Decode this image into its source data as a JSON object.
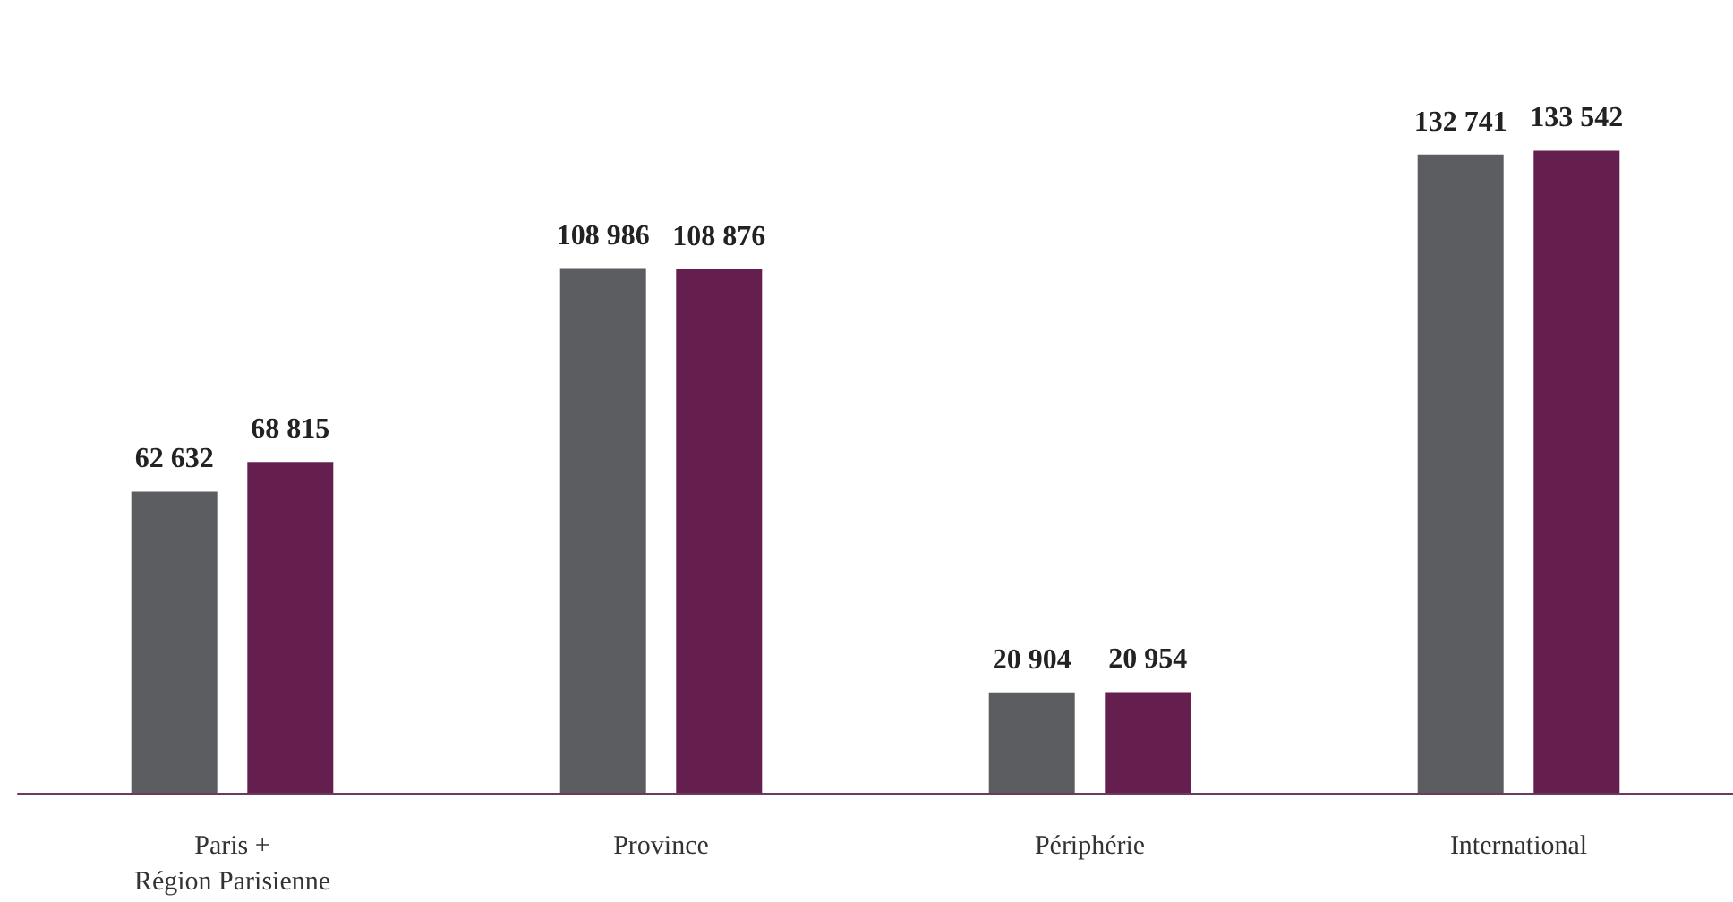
{
  "chart_data": {
    "type": "bar",
    "categories": [
      "Paris +\nRégion Parisienne",
      "Province",
      "Périphérie",
      "International"
    ],
    "series": [
      {
        "color": "#5c5d60",
        "values": [
          62632,
          108986,
          20904,
          132741
        ],
        "value_labels": [
          "62 632",
          "108 986",
          "20 904",
          "132 741"
        ]
      },
      {
        "color": "#641f4f",
        "values": [
          68815,
          108876,
          20954,
          133542
        ],
        "value_labels": [
          "68 815",
          "108 876",
          "20 954",
          "133 542"
        ]
      }
    ]
  }
}
